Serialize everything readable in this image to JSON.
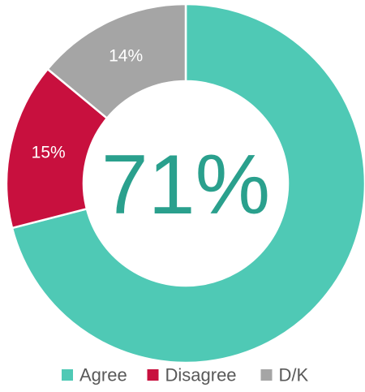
{
  "chart_data": {
    "type": "donut",
    "categories": [
      "Agree",
      "Disagree",
      "D/K"
    ],
    "values": [
      71,
      15,
      14
    ],
    "value_labels": [
      null,
      "15%",
      "14%"
    ],
    "colors": [
      "#4fc9b5",
      "#c8103e",
      "#a5a5a5"
    ],
    "center_label": "71%",
    "center_color": "#2aa08d",
    "legend": "bottom"
  }
}
